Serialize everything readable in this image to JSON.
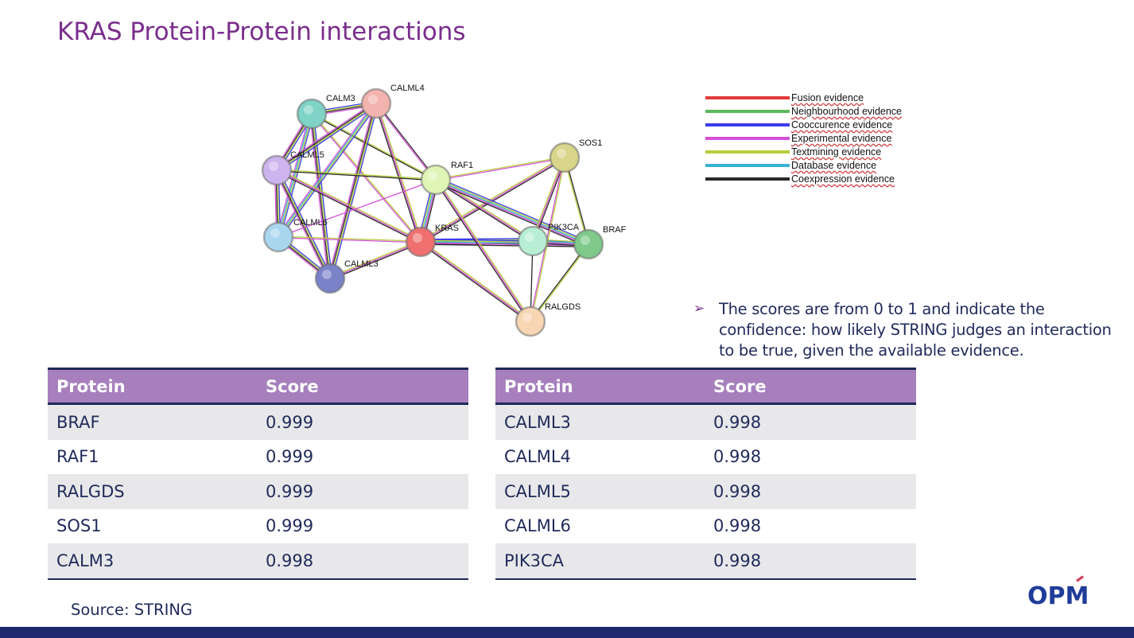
{
  "title": "KRAS Protein-Protein interactions",
  "network": {
    "nodes": [
      {
        "id": "CALM3",
        "color": "#7fd3c7"
      },
      {
        "id": "CALML4",
        "color": "#f3b3ae"
      },
      {
        "id": "CALML5",
        "color": "#cdb4ee"
      },
      {
        "id": "CALML6",
        "color": "#a9d6ef"
      },
      {
        "id": "CALML3",
        "color": "#7a82c8"
      },
      {
        "id": "RAF1",
        "color": "#dff5b5"
      },
      {
        "id": "KRAS",
        "color": "#f07070"
      },
      {
        "id": "SOS1",
        "color": "#d9d58a"
      },
      {
        "id": "PIK3CA",
        "color": "#b8efd4"
      },
      {
        "id": "BRAF",
        "color": "#7fc98a"
      },
      {
        "id": "RALGDS",
        "color": "#f8d6b4"
      }
    ]
  },
  "legend": [
    {
      "label": "Fusion evidence",
      "color": "#e23b3b"
    },
    {
      "label": "Neighbourhood evidence",
      "color": "#5bb85f"
    },
    {
      "label": "Cooccurence evidence",
      "color": "#3b3bea"
    },
    {
      "label": "Experimental evidence",
      "color": "#d64fd6"
    },
    {
      "label": "Textmining evidence",
      "color": "#b5cf3b"
    },
    {
      "label": "Database evidence",
      "color": "#38b2d4"
    },
    {
      "label": "Coexpression evidence",
      "color": "#2a2a2a"
    }
  ],
  "note": {
    "bullet": "➢",
    "text": "The scores are from 0 to 1 and indicate the confidence: how likely STRING judges an interaction to be true, given the available evidence."
  },
  "table_left": {
    "headers": [
      "Protein",
      "Score"
    ],
    "rows": [
      [
        "BRAF",
        "0.999"
      ],
      [
        "RAF1",
        "0.999"
      ],
      [
        "RALGDS",
        "0.999"
      ],
      [
        "SOS1",
        "0.999"
      ],
      [
        "CALM3",
        "0.998"
      ]
    ]
  },
  "table_right": {
    "headers": [
      "Protein",
      "Score"
    ],
    "rows": [
      [
        "CALML3",
        "0.998"
      ],
      [
        "CALML4",
        "0.998"
      ],
      [
        "CALML5",
        "0.998"
      ],
      [
        "CALML6",
        "0.998"
      ],
      [
        "PIK3CA",
        "0.998"
      ]
    ]
  },
  "source": "Source: STRING",
  "logo": "OPM"
}
